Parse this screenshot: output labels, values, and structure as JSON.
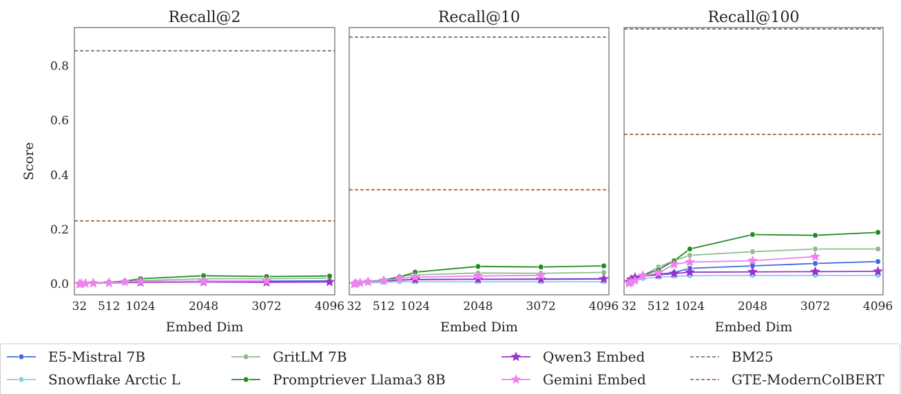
{
  "chart_data": {
    "type": "line",
    "ylabel": "Score",
    "ylim": [
      -0.04,
      0.94
    ],
    "yticks": [
      0.0,
      0.2,
      0.4,
      0.6,
      0.8
    ],
    "ytick_labels": [
      "0.0",
      "0.2",
      "0.4",
      "0.6",
      "0.8"
    ],
    "xticks": [
      32,
      512,
      1024,
      2048,
      3072,
      4096
    ],
    "xtick_labels": [
      "32",
      "512",
      "1024",
      "2048",
      "3072",
      "4096"
    ],
    "xlim": [
      -50,
      4180
    ],
    "grid": false,
    "legend_placement": "bottom",
    "legend_columns": 4,
    "panels": [
      {
        "title": "Recall@2",
        "xlabel": "Embed Dim",
        "baselines": [
          {
            "name": "BM25",
            "value": 0.855
          },
          {
            "name": "GTE-ModernColBERT",
            "value": 0.231
          }
        ],
        "series": [
          {
            "name": "E5-Mistral 7B",
            "x": [
              32,
              64,
              128,
              256,
              512,
              768,
              1024,
              2048,
              3072,
              4096
            ],
            "y": [
              0.0,
              0.001,
              0.002,
              0.003,
              0.004,
              0.006,
              0.008,
              0.01,
              0.01,
              0.011
            ]
          },
          {
            "name": "Snowflake Arctic L",
            "x": [
              32,
              64,
              128,
              256,
              512,
              768,
              1024
            ],
            "y": [
              0.0,
              0.001,
              0.002,
              0.002,
              0.003,
              0.004,
              0.005
            ]
          },
          {
            "name": "GritLM 7B",
            "x": [
              32,
              64,
              128,
              256,
              512,
              768,
              1024,
              2048,
              3072,
              4096
            ],
            "y": [
              0.0,
              0.001,
              0.002,
              0.003,
              0.005,
              0.008,
              0.012,
              0.019,
              0.019,
              0.021
            ]
          },
          {
            "name": "Promptriever Llama3 8B",
            "x": [
              32,
              64,
              128,
              256,
              512,
              768,
              1024,
              2048,
              3072,
              4096
            ],
            "y": [
              0.0,
              0.001,
              0.002,
              0.003,
              0.006,
              0.01,
              0.019,
              0.03,
              0.027,
              0.029
            ]
          },
          {
            "name": "Qwen3 Embed",
            "x": [
              32,
              64,
              128,
              256,
              512,
              1024,
              2048,
              3072,
              4096
            ],
            "y": [
              0.0,
              0.001,
              0.002,
              0.003,
              0.004,
              0.006,
              0.007,
              0.006,
              0.007
            ]
          },
          {
            "name": "Gemini Embed",
            "x": [
              32,
              64,
              128,
              256,
              512,
              768,
              1024,
              2048,
              3072
            ],
            "y": [
              0.0,
              0.001,
              0.002,
              0.003,
              0.004,
              0.007,
              0.009,
              0.01,
              0.011
            ]
          }
        ]
      },
      {
        "title": "Recall@10",
        "xlabel": "Embed Dim",
        "baselines": [
          {
            "name": "BM25",
            "value": 0.905
          },
          {
            "name": "GTE-ModernColBERT",
            "value": 0.345
          }
        ],
        "series": [
          {
            "name": "E5-Mistral 7B",
            "x": [
              32,
              64,
              128,
              256,
              512,
              768,
              1024,
              2048,
              3072,
              4096
            ],
            "y": [
              0.0,
              0.002,
              0.004,
              0.006,
              0.01,
              0.014,
              0.016,
              0.017,
              0.018,
              0.019
            ]
          },
          {
            "name": "Snowflake Arctic L",
            "x": [
              32,
              64,
              128,
              256,
              512,
              768,
              1024,
              2048,
              3072,
              4096
            ],
            "y": [
              0.0,
              0.002,
              0.003,
              0.004,
              0.006,
              0.008,
              0.008,
              0.008,
              0.008,
              0.008
            ]
          },
          {
            "name": "GritLM 7B",
            "x": [
              32,
              64,
              128,
              256,
              512,
              768,
              1024,
              2048,
              3072,
              4096
            ],
            "y": [
              0.0,
              0.002,
              0.004,
              0.008,
              0.014,
              0.028,
              0.033,
              0.04,
              0.039,
              0.042
            ]
          },
          {
            "name": "Promptriever Llama3 8B",
            "x": [
              32,
              64,
              128,
              256,
              512,
              768,
              1024,
              2048,
              3072,
              4096
            ],
            "y": [
              0.0,
              0.002,
              0.005,
              0.009,
              0.014,
              0.025,
              0.043,
              0.064,
              0.062,
              0.066
            ]
          },
          {
            "name": "Qwen3 Embed",
            "x": [
              32,
              64,
              128,
              256,
              512,
              1024,
              2048,
              3072,
              4096
            ],
            "y": [
              0.0,
              0.002,
              0.004,
              0.008,
              0.012,
              0.016,
              0.017,
              0.017,
              0.018
            ]
          },
          {
            "name": "Gemini Embed",
            "x": [
              32,
              64,
              128,
              256,
              512,
              768,
              1024,
              2048,
              3072
            ],
            "y": [
              0.0,
              0.002,
              0.004,
              0.008,
              0.012,
              0.02,
              0.025,
              0.029,
              0.031
            ]
          }
        ]
      },
      {
        "title": "Recall@100",
        "xlabel": "Embed Dim",
        "baselines": [
          {
            "name": "BM25",
            "value": 0.935
          },
          {
            "name": "GTE-ModernColBERT",
            "value": 0.548
          }
        ],
        "series": [
          {
            "name": "E5-Mistral 7B",
            "x": [
              32,
              64,
              128,
              256,
              512,
              768,
              1024,
              2048,
              3072,
              4096
            ],
            "y": [
              0.008,
              0.014,
              0.022,
              0.03,
              0.035,
              0.042,
              0.057,
              0.066,
              0.075,
              0.082
            ]
          },
          {
            "name": "Snowflake Arctic L",
            "x": [
              32,
              64,
              128,
              256,
              512,
              768,
              1024,
              2048,
              3072,
              4096
            ],
            "y": [
              0.004,
              0.01,
              0.015,
              0.02,
              0.025,
              0.028,
              0.03,
              0.031,
              0.031,
              0.031
            ]
          },
          {
            "name": "GritLM 7B",
            "x": [
              32,
              64,
              128,
              256,
              512,
              768,
              1024,
              2048,
              3072,
              4096
            ],
            "y": [
              0.004,
              0.01,
              0.02,
              0.03,
              0.062,
              0.085,
              0.105,
              0.118,
              0.128,
              0.128
            ]
          },
          {
            "name": "Promptriever Llama3 8B",
            "x": [
              32,
              64,
              128,
              256,
              512,
              768,
              1024,
              2048,
              3072,
              4096
            ],
            "y": [
              0.004,
              0.01,
              0.02,
              0.032,
              0.052,
              0.085,
              0.128,
              0.181,
              0.178,
              0.189
            ]
          },
          {
            "name": "Qwen3 Embed",
            "x": [
              32,
              64,
              128,
              256,
              512,
              768,
              1024,
              2048,
              3072,
              4096
            ],
            "y": [
              0.008,
              0.016,
              0.024,
              0.03,
              0.033,
              0.038,
              0.043,
              0.044,
              0.045,
              0.046
            ]
          },
          {
            "name": "Gemini Embed",
            "x": [
              32,
              64,
              128,
              256,
              512,
              768,
              1024,
              2048,
              3072
            ],
            "y": [
              0.002,
              0.006,
              0.012,
              0.03,
              0.04,
              0.072,
              0.08,
              0.085,
              0.1
            ]
          }
        ]
      }
    ],
    "legend": [
      {
        "name": "E5-Mistral 7B",
        "kind": "series"
      },
      {
        "name": "Snowflake Arctic L",
        "kind": "series"
      },
      {
        "name": "GritLM 7B",
        "kind": "series"
      },
      {
        "name": "Promptriever Llama3 8B",
        "kind": "series"
      },
      {
        "name": "Qwen3 Embed",
        "kind": "series"
      },
      {
        "name": "Gemini Embed",
        "kind": "series"
      },
      {
        "name": "BM25",
        "kind": "baseline"
      },
      {
        "name": "GTE-ModernColBERT",
        "kind": "baseline"
      }
    ],
    "styles": {
      "E5-Mistral 7B": {
        "color": "#4169e1",
        "marker": "circle"
      },
      "Snowflake Arctic L": {
        "color": "#87ceeb",
        "marker": "circle"
      },
      "GritLM 7B": {
        "color": "#8fbc8f",
        "marker": "circle"
      },
      "Promptriever Llama3 8B": {
        "color": "#228b22",
        "marker": "circle"
      },
      "Qwen3 Embed": {
        "color": "#9932cc",
        "marker": "star"
      },
      "Gemini Embed": {
        "color": "#ee82ee",
        "marker": "star"
      },
      "BM25": {
        "color": "#666666",
        "dash": true
      },
      "GTE-ModernColBERT": {
        "color": "#a0522d",
        "dash": true
      }
    }
  }
}
